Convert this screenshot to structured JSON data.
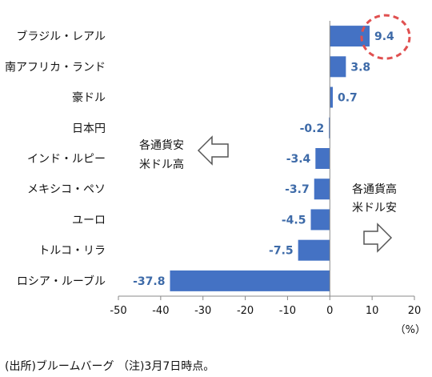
{
  "chart_data": {
    "type": "bar",
    "orientation": "horizontal",
    "categories": [
      "ブラジル・レアル",
      "南アフリカ・ランド",
      "豪ドル",
      "日本円",
      "インド・ルピー",
      "メキシコ・ペソ",
      "ユーロ",
      "トルコ・リラ",
      "ロシア・ルーブル"
    ],
    "values": [
      9.4,
      3.8,
      0.7,
      -0.2,
      -3.4,
      -3.7,
      -4.5,
      -7.5,
      -37.8
    ],
    "value_labels": [
      "9.4",
      "3.8",
      "0.7",
      "-0.2",
      "-3.4",
      "-3.7",
      "-4.5",
      "-7.5",
      "-37.8"
    ],
    "xlim": [
      -50,
      20
    ],
    "xticks": [
      "-50",
      "-40",
      "-30",
      "-20",
      "-10",
      "0",
      "10",
      "20"
    ],
    "xtick_values": [
      -50,
      -40,
      -30,
      -20,
      -10,
      0,
      10,
      20
    ],
    "unit": "（%）",
    "grid": false,
    "bar_color": "#4472c4",
    "label_color": "#3d6aa8",
    "highlight_color": "#e05050",
    "highlight_category": "ブラジル・レアル",
    "annotations": {
      "left_line1": "各通貨安",
      "left_line2": "米ドル高",
      "right_line1": "各通貨高",
      "right_line2": "米ドル安"
    }
  },
  "source_note": "(出所)ブルームバーグ （注)3月7日時点。"
}
